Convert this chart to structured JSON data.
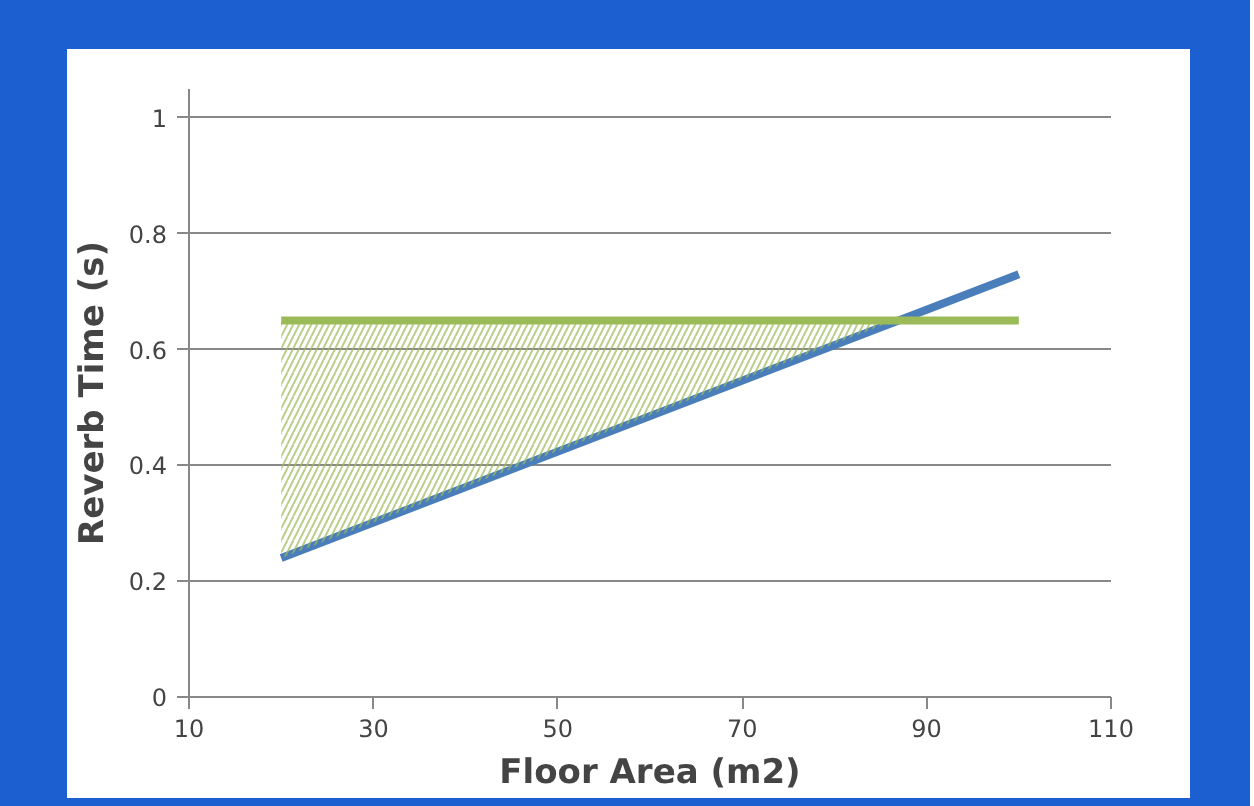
{
  "chart_data": {
    "type": "line",
    "xlabel": "Floor Area (m2)",
    "ylabel": "Reverb Time (s)",
    "xlim": [
      10,
      110
    ],
    "xticks": [
      10,
      30,
      50,
      70,
      90,
      110
    ],
    "ylim": [
      0,
      1.05
    ],
    "yticks": [
      0,
      0.2,
      0.4,
      0.6,
      0.8,
      1
    ],
    "grid": "y",
    "line_style": "solid",
    "series": [
      {
        "color": "#4a7ebb",
        "x": [
          20,
          100
        ],
        "values": [
          0.24,
          0.73
        ]
      },
      {
        "color": "#9bbb59",
        "x": [
          20,
          86.5,
          100
        ],
        "values": [
          0.65,
          0.65,
          0.65
        ],
        "lower": [
          0.24,
          0.65,
          null
        ],
        "upper": [
          0.65,
          0.65,
          null
        ]
      }
    ]
  }
}
